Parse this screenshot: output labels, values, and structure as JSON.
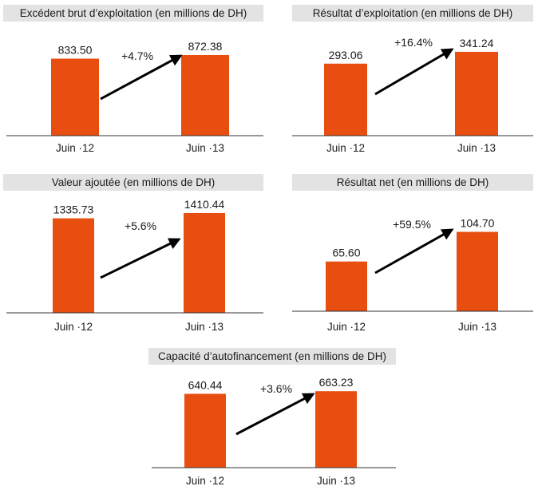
{
  "chart_data": [
    {
      "type": "bar",
      "title": "Excédent brut d’exploitation (en millions de DH)",
      "categories": [
        "Juin ·12",
        "Juin ·13"
      ],
      "values": [
        833.5,
        872.38
      ],
      "value_labels": [
        "833.50",
        "872.38"
      ],
      "change_label": "+4.7%",
      "bar_color": "#e84e10",
      "ylim": [
        0,
        950
      ]
    },
    {
      "type": "bar",
      "title": "Résultat d’exploitation (en millions de DH)",
      "categories": [
        "Juin ·12",
        "Juin ·13"
      ],
      "values": [
        293.06,
        341.24
      ],
      "value_labels": [
        "293.06",
        "341.24"
      ],
      "change_label": "+16.4%",
      "bar_color": "#e84e10",
      "ylim": [
        0,
        380
      ]
    },
    {
      "type": "bar",
      "title": "Valeur ajoutée (en millions de DH)",
      "categories": [
        "Juin ·12",
        "Juin ·13"
      ],
      "values": [
        1335.73,
        1410.44
      ],
      "value_labels": [
        "1335.73",
        "1410.44"
      ],
      "change_label": "+5.6%",
      "bar_color": "#e84e10",
      "ylim": [
        0,
        1500
      ]
    },
    {
      "type": "bar",
      "title": "Résultat net (en millions de DH)",
      "categories": [
        "Juin ·12",
        "Juin ·13"
      ],
      "values": [
        65.6,
        104.7
      ],
      "value_labels": [
        "65.60",
        "104.70"
      ],
      "change_label": "+59.5%",
      "bar_color": "#e84e10",
      "ylim": [
        0,
        120
      ]
    },
    {
      "type": "bar",
      "title": "Capacité d’autofinancement (en millions de DH)",
      "categories": [
        "Juin ·12",
        "Juin ·13"
      ],
      "values": [
        640.44,
        663.23
      ],
      "value_labels": [
        "640.44",
        "663.23"
      ],
      "change_label": "+3.6%",
      "bar_color": "#e84e10",
      "ylim": [
        0,
        720
      ]
    }
  ]
}
